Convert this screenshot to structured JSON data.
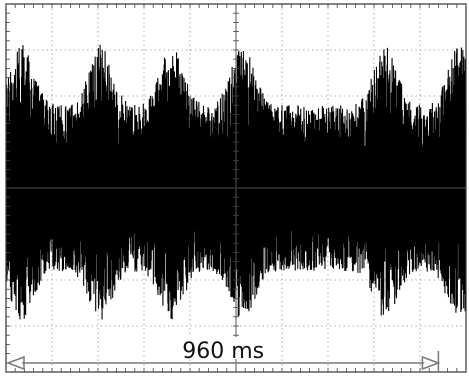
{
  "chart_data": {
    "type": "line",
    "title": "",
    "xlabel": "",
    "ylabel": "",
    "grid": true,
    "grid_divisions": {
      "x": 10,
      "y": 8
    },
    "xlim": [
      0,
      1
    ],
    "ylim": [
      -1,
      1
    ],
    "series": [
      {
        "description_free": true,
        "envelope_peaks_x": [
          0.035,
          0.205,
          0.36,
          0.515,
          0.825,
          0.985
        ],
        "baseline_amplitude": 0.45,
        "peak_amplitude_top": 0.78,
        "peak_amplitude_bottom": 0.72,
        "color": "#000000"
      }
    ],
    "annotation": {
      "label": "960 ms",
      "start_x": 0.0,
      "end_x": 0.94,
      "arrow_style": "double"
    }
  }
}
